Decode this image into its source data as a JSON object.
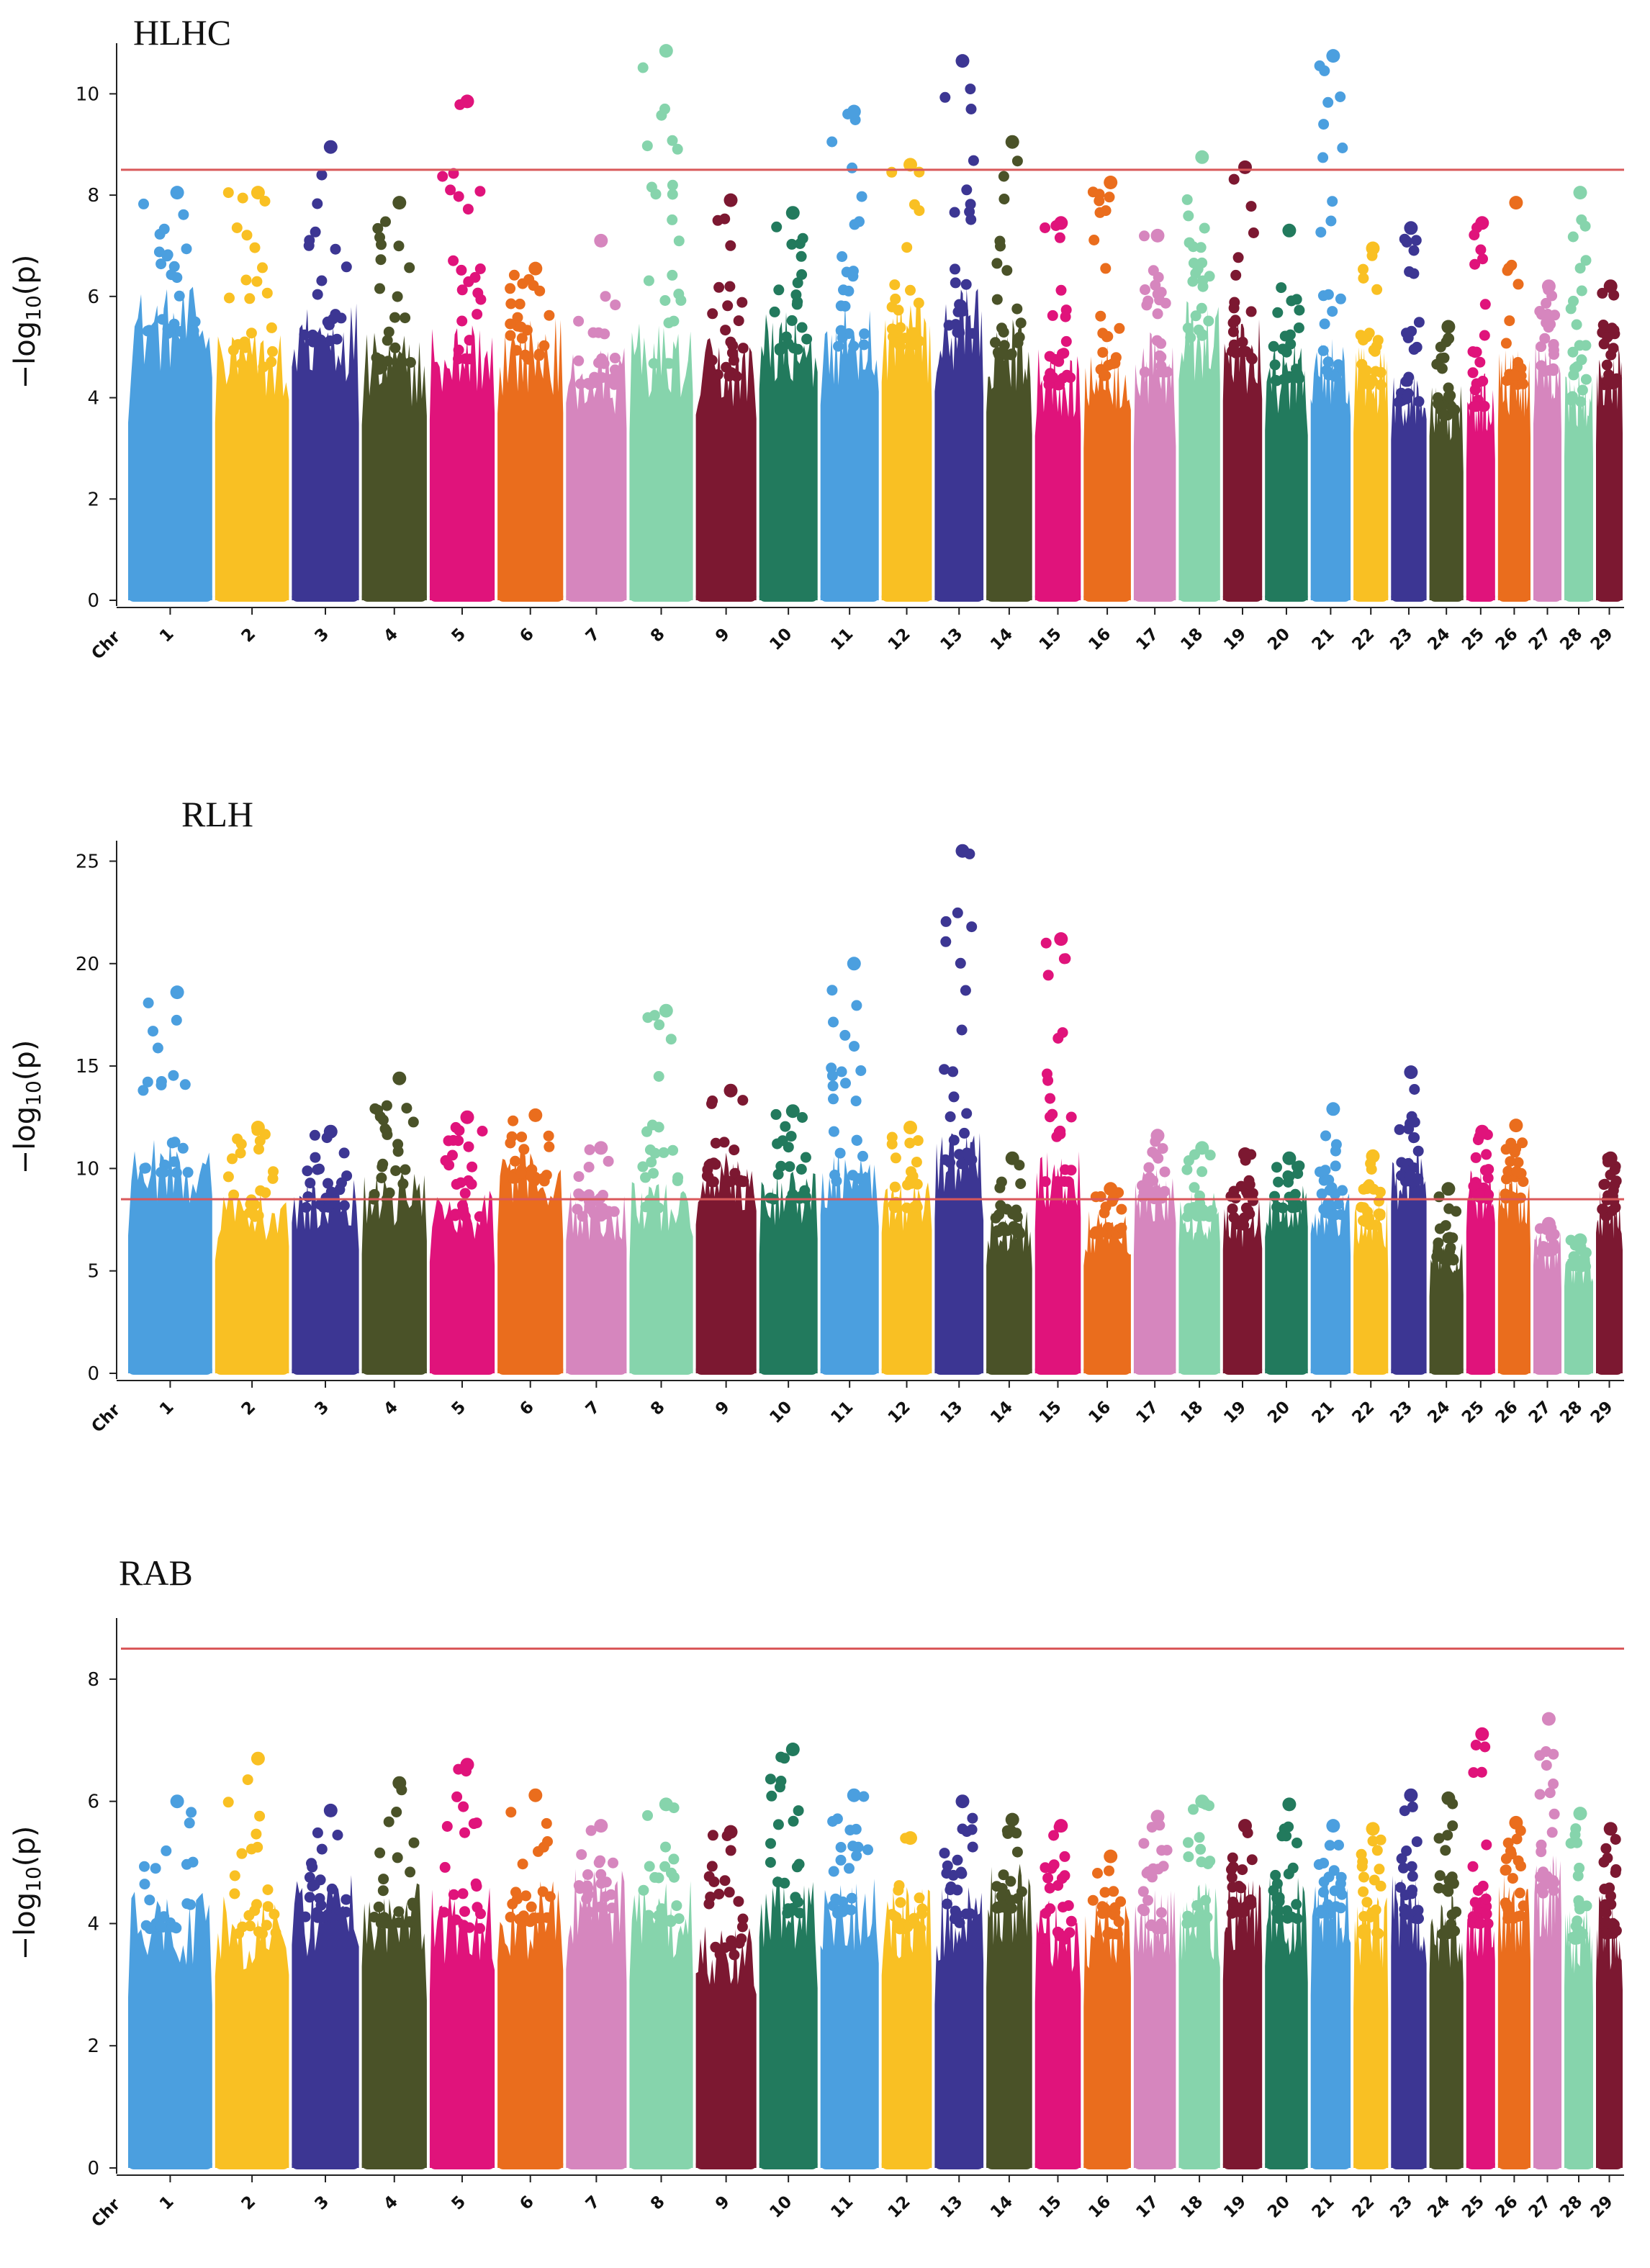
{
  "chart_data": [
    {
      "type": "scatter",
      "title": "HLHC",
      "ylabel": "−log10(p)",
      "xlabel": "",
      "x_axis_start_label": "Chr",
      "ylim": [
        0,
        11
      ],
      "yticks": [
        0,
        2,
        4,
        6,
        8,
        10
      ],
      "threshold": 8.5,
      "categories": [
        "1",
        "2",
        "3",
        "4",
        "5",
        "6",
        "7",
        "8",
        "9",
        "10",
        "11",
        "12",
        "13",
        "14",
        "15",
        "16",
        "17",
        "18",
        "19",
        "20",
        "21",
        "22",
        "23",
        "24",
        "25",
        "26",
        "27",
        "28",
        "29"
      ],
      "background_max": [
        6.2,
        5.4,
        6.0,
        5.3,
        5.6,
        5.6,
        5.0,
        5.5,
        5.2,
        5.8,
        5.9,
        5.9,
        6.2,
        5.7,
        5.0,
        5.2,
        5.3,
        6.0,
        5.6,
        5.1,
        5.2,
        5.0,
        4.6,
        4.3,
        4.5,
        5.0,
        5.2,
        4.6,
        5.0
      ],
      "top_hits": [
        8.05,
        8.05,
        8.95,
        7.85,
        9.85,
        6.55,
        7.1,
        10.85,
        7.9,
        7.65,
        9.65,
        8.6,
        10.65,
        9.05,
        7.45,
        8.25,
        7.2,
        8.75,
        8.55,
        7.3,
        10.75,
        6.95,
        7.35,
        5.4,
        7.45,
        7.85,
        6.2,
        8.05,
        6.2
      ]
    },
    {
      "type": "scatter",
      "title": "RLH",
      "ylabel": "−log10(p)",
      "xlabel": "",
      "x_axis_start_label": "Chr",
      "ylim": [
        0,
        26
      ],
      "yticks": [
        0,
        5,
        10,
        15,
        20,
        25
      ],
      "threshold": 8.5,
      "categories": [
        "1",
        "2",
        "3",
        "4",
        "5",
        "6",
        "7",
        "8",
        "9",
        "10",
        "11",
        "12",
        "13",
        "14",
        "15",
        "16",
        "17",
        "18",
        "19",
        "20",
        "21",
        "22",
        "23",
        "24",
        "25",
        "26",
        "27",
        "28",
        "29"
      ],
      "background_max": [
        11.5,
        9.0,
        9.5,
        10.0,
        9.0,
        11.0,
        9.0,
        9.5,
        11.0,
        10.0,
        11.0,
        9.5,
        12.0,
        8.0,
        11.0,
        8.0,
        10.0,
        9.0,
        8.5,
        9.5,
        9.0,
        8.5,
        11.0,
        6.5,
        10.0,
        10.0,
        7.0,
        6.0,
        9.0
      ],
      "top_hits": [
        18.6,
        12.0,
        11.8,
        14.4,
        12.5,
        12.6,
        11.0,
        17.7,
        13.8,
        12.8,
        20.0,
        12.0,
        25.5,
        10.5,
        21.2,
        9.0,
        11.6,
        11.0,
        10.7,
        10.5,
        12.9,
        10.6,
        14.7,
        9.0,
        11.8,
        12.1,
        7.3,
        6.5,
        10.5
      ]
    },
    {
      "type": "scatter",
      "title": "RAB",
      "ylabel": "−log10(p)",
      "xlabel": "",
      "x_axis_start_label": "Chr",
      "ylim": [
        0,
        9
      ],
      "yticks": [
        0,
        2,
        4,
        6,
        8
      ],
      "threshold": 8.5,
      "categories": [
        "1",
        "2",
        "3",
        "4",
        "5",
        "6",
        "7",
        "8",
        "9",
        "10",
        "11",
        "12",
        "13",
        "14",
        "15",
        "16",
        "17",
        "18",
        "19",
        "20",
        "21",
        "22",
        "23",
        "24",
        "25",
        "26",
        "27",
        "28",
        "29"
      ],
      "background_max": [
        4.6,
        4.5,
        4.8,
        4.7,
        4.6,
        4.7,
        4.9,
        4.7,
        4.1,
        4.9,
        4.9,
        4.6,
        4.7,
        5.0,
        4.4,
        4.5,
        4.6,
        4.7,
        4.9,
        4.8,
        4.9,
        4.5,
        4.8,
        4.5,
        4.7,
        4.8,
        5.2,
        4.4,
        4.5
      ],
      "top_hits": [
        6.0,
        6.7,
        5.85,
        6.3,
        6.6,
        6.1,
        5.6,
        5.95,
        5.5,
        6.85,
        6.1,
        5.4,
        6.0,
        5.7,
        5.6,
        5.1,
        5.75,
        6.0,
        5.6,
        5.95,
        5.6,
        5.55,
        6.1,
        6.05,
        7.1,
        5.65,
        7.35,
        5.8,
        5.55
      ]
    }
  ],
  "colors": {
    "chromosomes": [
      "#4b9fdf",
      "#f9c023",
      "#3c3693",
      "#4a5228",
      "#e0137b",
      "#ea6d1d",
      "#d686be",
      "#86d4ac",
      "#7c1831",
      "#227a5d"
    ],
    "threshold": "#d9585a"
  }
}
